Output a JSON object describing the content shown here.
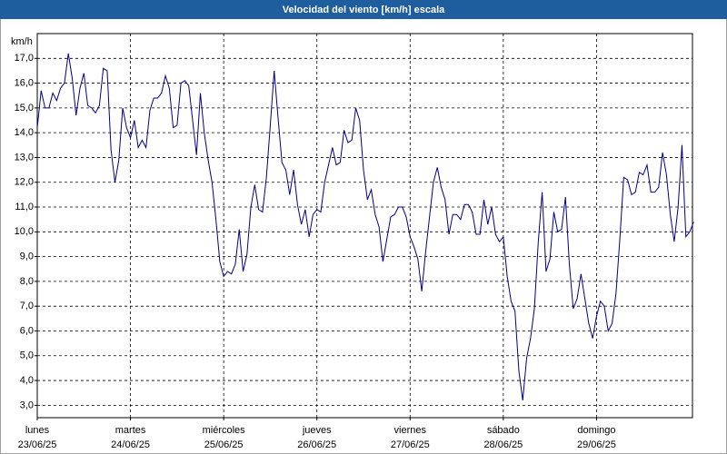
{
  "chart_data": {
    "type": "line",
    "title": "Velocidad del viento [km/h] escala",
    "y_unit": "km/h",
    "xlim": [
      0,
      168.7
    ],
    "ylim": [
      2.5,
      18.0
    ],
    "grid": true,
    "xticks": [
      {
        "value": 0,
        "label": "lunes",
        "date": "23/06/25"
      },
      {
        "value": 24,
        "label": "martes",
        "date": "24/06/25"
      },
      {
        "value": 48,
        "label": "miércoles",
        "date": "25/06/25"
      },
      {
        "value": 72,
        "label": "jueves",
        "date": "26/06/25"
      },
      {
        "value": 96,
        "label": "viernes",
        "date": "27/06/25"
      },
      {
        "value": 120,
        "label": "sábado",
        "date": "28/06/25"
      },
      {
        "value": 144,
        "label": "domingo",
        "date": "29/06/25"
      }
    ],
    "yticks": [
      {
        "value": 3,
        "label": "3,0"
      },
      {
        "value": 4,
        "label": "4,0"
      },
      {
        "value": 5,
        "label": "5,0"
      },
      {
        "value": 6,
        "label": "6,0"
      },
      {
        "value": 7,
        "label": "7,0"
      },
      {
        "value": 8,
        "label": "8,0"
      },
      {
        "value": 9,
        "label": "9,0"
      },
      {
        "value": 10,
        "label": "10,0"
      },
      {
        "value": 11,
        "label": "11,0"
      },
      {
        "value": 12,
        "label": "12,0"
      },
      {
        "value": 13,
        "label": "13,0"
      },
      {
        "value": 14,
        "label": "14,0"
      },
      {
        "value": 15,
        "label": "15,0"
      },
      {
        "value": 16,
        "label": "16,0"
      },
      {
        "value": 17,
        "label": "17,0"
      }
    ],
    "color": "#00008c",
    "values": [
      14.2,
      15.7,
      15.0,
      15.0,
      15.6,
      15.3,
      15.8,
      16.0,
      17.2,
      16.2,
      14.7,
      15.8,
      16.4,
      15.1,
      15.0,
      14.8,
      15.1,
      16.6,
      16.5,
      13.3,
      12.0,
      12.9,
      15.0,
      14.2,
      13.8,
      14.5,
      13.4,
      13.7,
      13.4,
      14.9,
      15.4,
      15.4,
      15.6,
      16.3,
      15.8,
      14.2,
      14.3,
      16.0,
      16.1,
      15.9,
      14.5,
      13.1,
      15.6,
      14.0,
      12.9,
      12.0,
      10.5,
      8.8,
      8.2,
      8.4,
      8.3,
      8.7,
      10.1,
      8.4,
      9.1,
      11.0,
      11.9,
      10.9,
      10.8,
      12.2,
      14.3,
      16.5,
      14.6,
      12.8,
      12.5,
      11.5,
      12.5,
      11.1,
      10.3,
      10.9,
      9.8,
      10.7,
      10.9,
      10.8,
      12.0,
      12.7,
      13.4,
      12.7,
      12.8,
      14.1,
      13.6,
      13.7,
      15.0,
      14.5,
      12.5,
      11.3,
      11.7,
      10.7,
      10.2,
      8.8,
      9.7,
      10.6,
      10.7,
      11.0,
      11.0,
      10.6,
      9.8,
      9.4,
      8.9,
      7.6,
      9.2,
      10.6,
      12.0,
      12.6,
      11.8,
      11.3,
      9.9,
      10.7,
      10.7,
      10.5,
      11.1,
      11.1,
      10.8,
      9.9,
      9.9,
      11.3,
      10.3,
      11.0,
      9.9,
      9.6,
      9.8,
      8.2,
      7.2,
      6.8,
      4.4,
      3.2,
      4.9,
      5.7,
      6.9,
      9.6,
      11.6,
      8.4,
      8.9,
      10.8,
      10.0,
      10.1,
      11.4,
      8.7,
      6.9,
      7.3,
      8.3,
      7.3,
      6.3,
      5.7,
      6.6,
      7.2,
      7.0,
      6.0,
      6.3,
      7.5,
      9.7,
      12.2,
      12.1,
      11.5,
      11.6,
      12.4,
      12.3,
      12.7,
      11.6,
      11.6,
      11.8,
      13.2,
      12.3,
      10.7,
      9.6,
      11.0,
      13.5,
      9.8,
      10.0,
      10.4
    ]
  }
}
